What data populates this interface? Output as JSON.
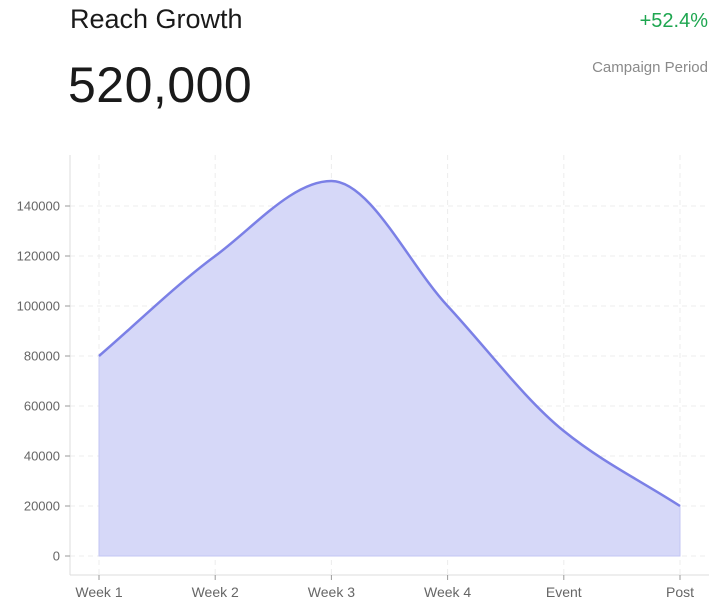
{
  "header": {
    "title": "Reach Growth",
    "value": "520,000",
    "change": "+52.4%",
    "period": "Campaign Period"
  },
  "colors": {
    "line": "#7b80e6",
    "fill": "#d6d8f8",
    "positive": "#1ea650"
  },
  "chart_data": {
    "type": "area",
    "categories": [
      "Week 1",
      "Week 2",
      "Week 3",
      "Week 4",
      "Event",
      "Post"
    ],
    "series": [
      {
        "values": [
          80000,
          120000,
          150000,
          100000,
          50000,
          20000
        ]
      }
    ],
    "ylim": [
      0,
      160000
    ],
    "yticks": [
      0,
      20000,
      40000,
      60000,
      80000,
      100000,
      120000,
      140000
    ],
    "grid": true,
    "smooth": true
  }
}
